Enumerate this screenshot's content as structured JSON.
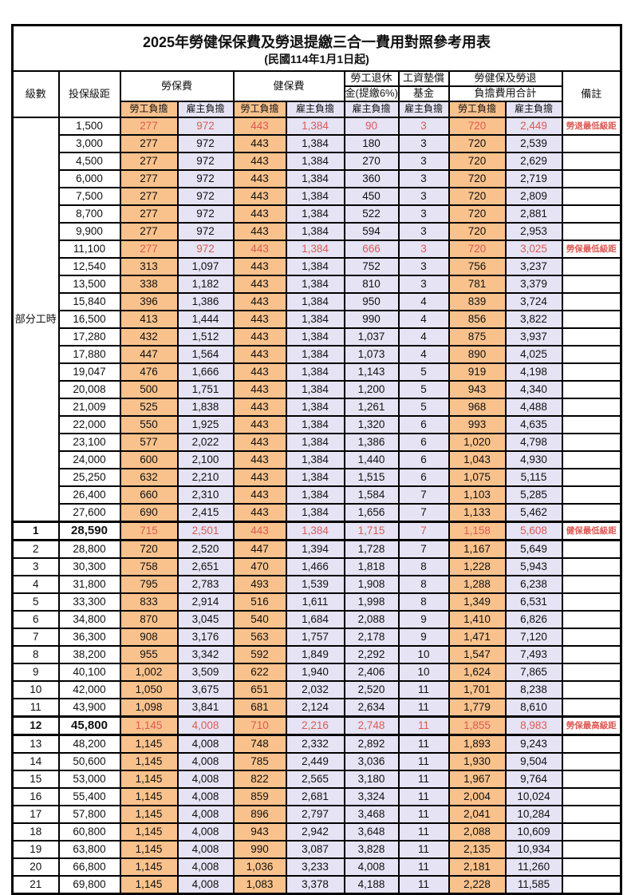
{
  "title": "2025年勞健保保費及勞退提繳三合一費用對照參考用表",
  "subtitle": "(民國114年1月1日起)",
  "colors": {
    "employee_burden_bg": "#F9C28D",
    "employer_burden_bg": "#E5E3F4",
    "highlight_red": "#DC5A55"
  },
  "columns": {
    "level": "級數",
    "bracket": "投保級距",
    "labor_insurance": "勞保費",
    "health_insurance": "健保費",
    "pension_line1": "勞工退休",
    "pension_line2": "金(提繳6%)",
    "fund_line1": "工資墊償",
    "fund_line2": "基金",
    "total_line1": "勞健保及勞退",
    "total_line2": "負擔費用合計",
    "remark": "備註",
    "employee_burden": "勞工負擔",
    "employer_burden": "雇主負擔"
  },
  "chart_data": {
    "type": "table",
    "value_columns": [
      "勞保費-勞工負擔",
      "勞保費-雇主負擔",
      "健保費-勞工負擔",
      "健保費-雇主負擔",
      "勞工退休金(提繳6%)-雇主負擔",
      "工資墊償基金-雇主負擔",
      "合計-勞工負擔",
      "合計-雇主負擔"
    ],
    "part_time_label": "部分工時",
    "part_time_rowspan": 23,
    "rows": [
      {
        "level": "",
        "bracket": "1,500",
        "values": [
          "277",
          "972",
          "443",
          "1,384",
          "90",
          "3",
          "720",
          "2,449"
        ],
        "remark": "勞退最低級距",
        "red": true,
        "bold": false
      },
      {
        "level": "",
        "bracket": "3,000",
        "values": [
          "277",
          "972",
          "443",
          "1,384",
          "180",
          "3",
          "720",
          "2,539"
        ],
        "remark": "",
        "red": false,
        "bold": false
      },
      {
        "level": "",
        "bracket": "4,500",
        "values": [
          "277",
          "972",
          "443",
          "1,384",
          "270",
          "3",
          "720",
          "2,629"
        ],
        "remark": "",
        "red": false,
        "bold": false
      },
      {
        "level": "",
        "bracket": "6,000",
        "values": [
          "277",
          "972",
          "443",
          "1,384",
          "360",
          "3",
          "720",
          "2,719"
        ],
        "remark": "",
        "red": false,
        "bold": false
      },
      {
        "level": "",
        "bracket": "7,500",
        "values": [
          "277",
          "972",
          "443",
          "1,384",
          "450",
          "3",
          "720",
          "2,809"
        ],
        "remark": "",
        "red": false,
        "bold": false
      },
      {
        "level": "",
        "bracket": "8,700",
        "values": [
          "277",
          "972",
          "443",
          "1,384",
          "522",
          "3",
          "720",
          "2,881"
        ],
        "remark": "",
        "red": false,
        "bold": false
      },
      {
        "level": "",
        "bracket": "9,900",
        "values": [
          "277",
          "972",
          "443",
          "1,384",
          "594",
          "3",
          "720",
          "2,953"
        ],
        "remark": "",
        "red": false,
        "bold": false
      },
      {
        "level": "",
        "bracket": "11,100",
        "values": [
          "277",
          "972",
          "443",
          "1,384",
          "666",
          "3",
          "720",
          "3,025"
        ],
        "remark": "勞保最低級距",
        "red": true,
        "bold": false
      },
      {
        "level": "",
        "bracket": "12,540",
        "values": [
          "313",
          "1,097",
          "443",
          "1,384",
          "752",
          "3",
          "756",
          "3,237"
        ],
        "remark": "",
        "red": false,
        "bold": false
      },
      {
        "level": "",
        "bracket": "13,500",
        "values": [
          "338",
          "1,182",
          "443",
          "1,384",
          "810",
          "3",
          "781",
          "3,379"
        ],
        "remark": "",
        "red": false,
        "bold": false
      },
      {
        "level": "",
        "bracket": "15,840",
        "values": [
          "396",
          "1,386",
          "443",
          "1,384",
          "950",
          "4",
          "839",
          "3,724"
        ],
        "remark": "",
        "red": false,
        "bold": false
      },
      {
        "level": "",
        "bracket": "16,500",
        "values": [
          "413",
          "1,444",
          "443",
          "1,384",
          "990",
          "4",
          "856",
          "3,822"
        ],
        "remark": "",
        "red": false,
        "bold": false
      },
      {
        "level": "",
        "bracket": "17,280",
        "values": [
          "432",
          "1,512",
          "443",
          "1,384",
          "1,037",
          "4",
          "875",
          "3,937"
        ],
        "remark": "",
        "red": false,
        "bold": false
      },
      {
        "level": "",
        "bracket": "17,880",
        "values": [
          "447",
          "1,564",
          "443",
          "1,384",
          "1,073",
          "4",
          "890",
          "4,025"
        ],
        "remark": "",
        "red": false,
        "bold": false
      },
      {
        "level": "",
        "bracket": "19,047",
        "values": [
          "476",
          "1,666",
          "443",
          "1,384",
          "1,143",
          "5",
          "919",
          "4,198"
        ],
        "remark": "",
        "red": false,
        "bold": false
      },
      {
        "level": "",
        "bracket": "20,008",
        "values": [
          "500",
          "1,751",
          "443",
          "1,384",
          "1,200",
          "5",
          "943",
          "4,340"
        ],
        "remark": "",
        "red": false,
        "bold": false
      },
      {
        "level": "",
        "bracket": "21,009",
        "values": [
          "525",
          "1,838",
          "443",
          "1,384",
          "1,261",
          "5",
          "968",
          "4,488"
        ],
        "remark": "",
        "red": false,
        "bold": false
      },
      {
        "level": "",
        "bracket": "22,000",
        "values": [
          "550",
          "1,925",
          "443",
          "1,384",
          "1,320",
          "6",
          "993",
          "4,635"
        ],
        "remark": "",
        "red": false,
        "bold": false
      },
      {
        "level": "",
        "bracket": "23,100",
        "values": [
          "577",
          "2,022",
          "443",
          "1,384",
          "1,386",
          "6",
          "1,020",
          "4,798"
        ],
        "remark": "",
        "red": false,
        "bold": false
      },
      {
        "level": "",
        "bracket": "24,000",
        "values": [
          "600",
          "2,100",
          "443",
          "1,384",
          "1,440",
          "6",
          "1,043",
          "4,930"
        ],
        "remark": "",
        "red": false,
        "bold": false
      },
      {
        "level": "",
        "bracket": "25,250",
        "values": [
          "632",
          "2,210",
          "443",
          "1,384",
          "1,515",
          "6",
          "1,075",
          "5,115"
        ],
        "remark": "",
        "red": false,
        "bold": false
      },
      {
        "level": "",
        "bracket": "26,400",
        "values": [
          "660",
          "2,310",
          "443",
          "1,384",
          "1,584",
          "7",
          "1,103",
          "5,285"
        ],
        "remark": "",
        "red": false,
        "bold": false
      },
      {
        "level": "",
        "bracket": "27,600",
        "values": [
          "690",
          "2,415",
          "443",
          "1,384",
          "1,656",
          "7",
          "1,133",
          "5,462"
        ],
        "remark": "",
        "red": false,
        "bold": false
      },
      {
        "level": "1",
        "bracket": "28,590",
        "values": [
          "715",
          "2,501",
          "443",
          "1,384",
          "1,715",
          "7",
          "1,158",
          "5,608"
        ],
        "remark": "健保最低級距",
        "red": true,
        "bold": true
      },
      {
        "level": "2",
        "bracket": "28,800",
        "values": [
          "720",
          "2,520",
          "447",
          "1,394",
          "1,728",
          "7",
          "1,167",
          "5,649"
        ],
        "remark": "",
        "red": false,
        "bold": false
      },
      {
        "level": "3",
        "bracket": "30,300",
        "values": [
          "758",
          "2,651",
          "470",
          "1,466",
          "1,818",
          "8",
          "1,228",
          "5,943"
        ],
        "remark": "",
        "red": false,
        "bold": false
      },
      {
        "level": "4",
        "bracket": "31,800",
        "values": [
          "795",
          "2,783",
          "493",
          "1,539",
          "1,908",
          "8",
          "1,288",
          "6,238"
        ],
        "remark": "",
        "red": false,
        "bold": false
      },
      {
        "level": "5",
        "bracket": "33,300",
        "values": [
          "833",
          "2,914",
          "516",
          "1,611",
          "1,998",
          "8",
          "1,349",
          "6,531"
        ],
        "remark": "",
        "red": false,
        "bold": false
      },
      {
        "level": "6",
        "bracket": "34,800",
        "values": [
          "870",
          "3,045",
          "540",
          "1,684",
          "2,088",
          "9",
          "1,410",
          "6,826"
        ],
        "remark": "",
        "red": false,
        "bold": false
      },
      {
        "level": "7",
        "bracket": "36,300",
        "values": [
          "908",
          "3,176",
          "563",
          "1,757",
          "2,178",
          "9",
          "1,471",
          "7,120"
        ],
        "remark": "",
        "red": false,
        "bold": false
      },
      {
        "level": "8",
        "bracket": "38,200",
        "values": [
          "955",
          "3,342",
          "592",
          "1,849",
          "2,292",
          "10",
          "1,547",
          "7,493"
        ],
        "remark": "",
        "red": false,
        "bold": false
      },
      {
        "level": "9",
        "bracket": "40,100",
        "values": [
          "1,002",
          "3,509",
          "622",
          "1,940",
          "2,406",
          "10",
          "1,624",
          "7,865"
        ],
        "remark": "",
        "red": false,
        "bold": false
      },
      {
        "level": "10",
        "bracket": "42,000",
        "values": [
          "1,050",
          "3,675",
          "651",
          "2,032",
          "2,520",
          "11",
          "1,701",
          "8,238"
        ],
        "remark": "",
        "red": false,
        "bold": false
      },
      {
        "level": "11",
        "bracket": "43,900",
        "values": [
          "1,098",
          "3,841",
          "681",
          "2,124",
          "2,634",
          "11",
          "1,779",
          "8,610"
        ],
        "remark": "",
        "red": false,
        "bold": false
      },
      {
        "level": "12",
        "bracket": "45,800",
        "values": [
          "1,145",
          "4,008",
          "710",
          "2,216",
          "2,748",
          "11",
          "1,855",
          "8,983"
        ],
        "remark": "勞保最高級距",
        "red": true,
        "bold": true
      },
      {
        "level": "13",
        "bracket": "48,200",
        "values": [
          "1,145",
          "4,008",
          "748",
          "2,332",
          "2,892",
          "11",
          "1,893",
          "9,243"
        ],
        "remark": "",
        "red": false,
        "bold": false
      },
      {
        "level": "14",
        "bracket": "50,600",
        "values": [
          "1,145",
          "4,008",
          "785",
          "2,449",
          "3,036",
          "11",
          "1,930",
          "9,504"
        ],
        "remark": "",
        "red": false,
        "bold": false
      },
      {
        "level": "15",
        "bracket": "53,000",
        "values": [
          "1,145",
          "4,008",
          "822",
          "2,565",
          "3,180",
          "11",
          "1,967",
          "9,764"
        ],
        "remark": "",
        "red": false,
        "bold": false
      },
      {
        "level": "16",
        "bracket": "55,400",
        "values": [
          "1,145",
          "4,008",
          "859",
          "2,681",
          "3,324",
          "11",
          "2,004",
          "10,024"
        ],
        "remark": "",
        "red": false,
        "bold": false
      },
      {
        "level": "17",
        "bracket": "57,800",
        "values": [
          "1,145",
          "4,008",
          "896",
          "2,797",
          "3,468",
          "11",
          "2,041",
          "10,284"
        ],
        "remark": "",
        "red": false,
        "bold": false
      },
      {
        "level": "18",
        "bracket": "60,800",
        "values": [
          "1,145",
          "4,008",
          "943",
          "2,942",
          "3,648",
          "11",
          "2,088",
          "10,609"
        ],
        "remark": "",
        "red": false,
        "bold": false
      },
      {
        "level": "19",
        "bracket": "63,800",
        "values": [
          "1,145",
          "4,008",
          "990",
          "3,087",
          "3,828",
          "11",
          "2,135",
          "10,934"
        ],
        "remark": "",
        "red": false,
        "bold": false
      },
      {
        "level": "20",
        "bracket": "66,800",
        "values": [
          "1,145",
          "4,008",
          "1,036",
          "3,233",
          "4,008",
          "11",
          "2,181",
          "11,260"
        ],
        "remark": "",
        "red": false,
        "bold": false
      },
      {
        "level": "21",
        "bracket": "69,800",
        "values": [
          "1,145",
          "4,008",
          "1,083",
          "3,378",
          "4,188",
          "11",
          "2,228",
          "11,585"
        ],
        "remark": "",
        "red": false,
        "bold": false
      }
    ]
  }
}
